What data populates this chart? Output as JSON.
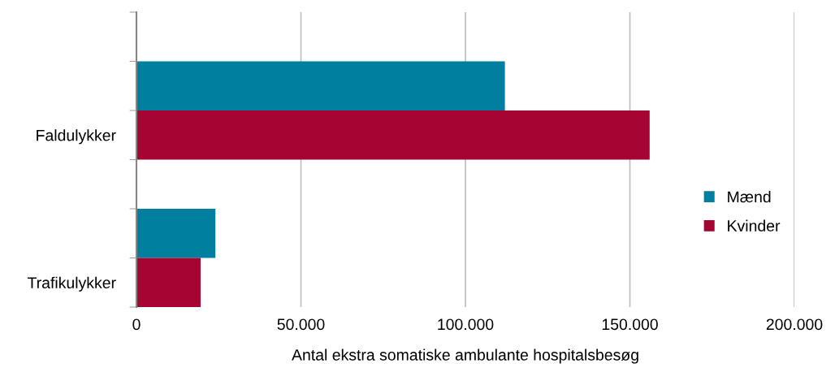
{
  "chart_data": {
    "type": "bar",
    "orientation": "horizontal",
    "xlabel": "Antal ekstra somatiske ambulante hospitalsbesøg",
    "categories": [
      "Faldulykker",
      "Trafikulykker"
    ],
    "series": [
      {
        "name": "Mænd",
        "color": "#007f9f",
        "values": [
          112000,
          24000
        ]
      },
      {
        "name": "Kvinder",
        "color": "#a50533",
        "values": [
          156000,
          19500
        ]
      }
    ],
    "xlim": [
      0,
      200000
    ],
    "xticks": [
      0,
      {
        "value": 50000,
        "label": "50.000"
      },
      {
        "value": 100000,
        "label": "100.000"
      },
      {
        "value": 150000,
        "label": "150.000"
      },
      {
        "value": 200000,
        "label": "200.000"
      }
    ],
    "grid": "x",
    "legend": "right"
  }
}
